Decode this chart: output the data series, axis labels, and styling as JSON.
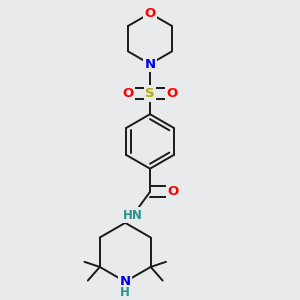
{
  "bg_color": "#e8eaec",
  "bond_color": "#1a1a1a",
  "bond_width": 1.4,
  "dbo": 0.018,
  "atom_colors": {
    "O": "#ff0000",
    "N": "#0000ee",
    "S": "#bbaa00",
    "NH": "#2a9090",
    "C": "#1a1a1a"
  },
  "fs": 9.5
}
